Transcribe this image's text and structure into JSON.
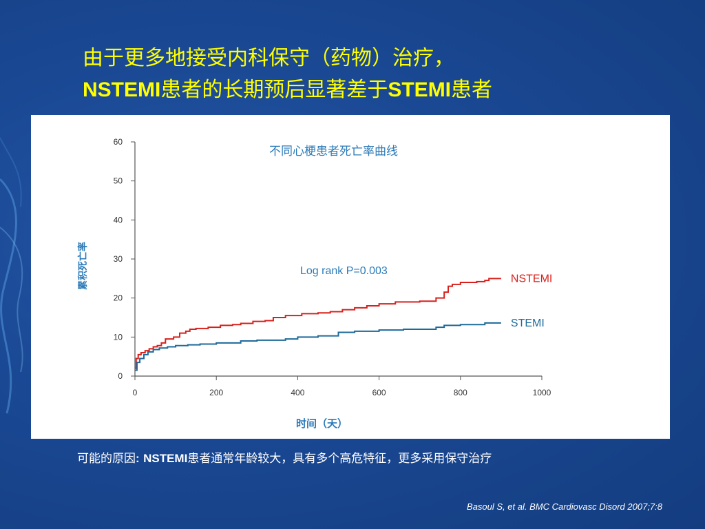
{
  "slide": {
    "title_line1": "由于更多地接受内科保守（药物）治疗，",
    "title_line2_a": "NSTEMI",
    "title_line2_b": "患者的长期预后显著差于",
    "title_line2_c": "STEMI",
    "title_line2_d": "患者",
    "reason_prefix": "可能的原因",
    "reason_colon": ":",
    "reason_term": "NSTEMI",
    "reason_rest": "患者通常年龄较大，具有多个高危特征，更多采用保守治疗",
    "citation": "Basoul S, et al. BMC Cardiovasc Disord 2007;7:8"
  },
  "colors": {
    "title": "#ffff00",
    "nstemi": "#d8201c",
    "stemi": "#1d6a9a",
    "axis_text": "#2a7ab8",
    "tick_text": "#333333"
  },
  "chart_data": {
    "type": "line",
    "title": "不同心梗患者死亡率曲线",
    "xlabel": "时间（天）",
    "ylabel": "累积死亡率",
    "xlim": [
      0,
      1000
    ],
    "ylim": [
      0,
      60
    ],
    "xticks": [
      0,
      200,
      400,
      600,
      800,
      1000
    ],
    "yticks": [
      0,
      10,
      20,
      30,
      40,
      50,
      60
    ],
    "grid": false,
    "annotation": "Log rank P=0.003",
    "series": [
      {
        "name": "NSTEMI",
        "step": true,
        "x": [
          0,
          3,
          8,
          15,
          25,
          35,
          45,
          55,
          65,
          75,
          95,
          110,
          125,
          135,
          150,
          180,
          210,
          240,
          260,
          290,
          320,
          340,
          370,
          410,
          450,
          480,
          510,
          540,
          570,
          600,
          640,
          700,
          740,
          760,
          770,
          780,
          800,
          840,
          860,
          870,
          890,
          900
        ],
        "y": [
          2,
          4.5,
          5.5,
          6,
          6.5,
          7,
          7.5,
          7.8,
          8.5,
          9.5,
          10,
          11,
          11.5,
          12,
          12.2,
          12.5,
          13,
          13.2,
          13.5,
          14,
          14.2,
          15,
          15.5,
          16,
          16.2,
          16.5,
          17,
          17.5,
          18,
          18.5,
          19,
          19.2,
          20,
          21.5,
          23,
          23.5,
          24,
          24.2,
          24.5,
          25,
          25,
          25
        ]
      },
      {
        "name": "STEMI",
        "step": true,
        "x": [
          0,
          5,
          12,
          22,
          32,
          45,
          60,
          80,
          100,
          130,
          160,
          200,
          260,
          300,
          370,
          400,
          450,
          500,
          540,
          600,
          660,
          740,
          760,
          800,
          860,
          900
        ],
        "y": [
          1.5,
          3.5,
          4.5,
          5.5,
          6.2,
          6.8,
          7.2,
          7.5,
          7.8,
          8,
          8.2,
          8.5,
          9,
          9.2,
          9.5,
          10,
          10.3,
          11.2,
          11.5,
          11.8,
          12,
          12.5,
          13,
          13.2,
          13.6,
          13.6
        ]
      }
    ]
  }
}
